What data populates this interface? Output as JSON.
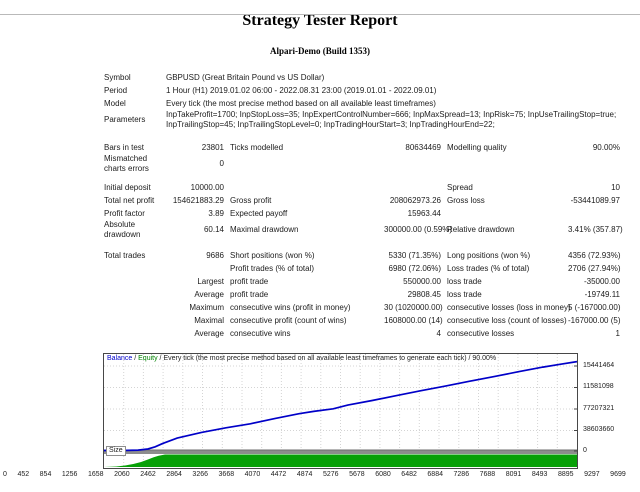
{
  "header": {
    "title": "Strategy Tester Report",
    "subtitle": "Alpari-Demo (Build 1353)"
  },
  "report": {
    "rows": [
      {
        "c1": "Symbol",
        "span": "GBPUSD (Great Britain Pound vs US Dollar)"
      },
      {
        "c1": "Period",
        "span": "1 Hour (H1) 2019.01.02 06:00 - 2022.08.31 23:00 (2019.01.01 - 2022.09.01)"
      },
      {
        "c1": "Model",
        "span": "Every tick (the most precise method based on all available least timeframes)"
      },
      {
        "c1": "Parameters",
        "span": "InpTakeProfit=1700; InpStopLoss=35; InpExpertControlNumber=666; InpMaxSpread=13; InpRisk=75; InpUseTrailingStop=true; InpTrailingStop=45; InpTrailingStopLevel=0; InpTradingHourStart=3; InpTradingHourEnd=22;"
      },
      {
        "gap": 12
      },
      {
        "c1": "Bars in test",
        "c2": "23801",
        "c3": "Ticks modelled",
        "c4": "80634469",
        "c5": "Modelling quality",
        "c6": "90.00%"
      },
      {
        "c1": "Mismatched charts errors",
        "c2": "0"
      },
      {
        "gap": 8
      },
      {
        "c1": "Initial deposit",
        "c2": "10000.00",
        "c5": "Spread",
        "c6": "10"
      },
      {
        "c1": "Total net profit",
        "c2": "154621883.29",
        "c3": "Gross profit",
        "c4": "208062973.26",
        "c5": "Gross loss",
        "c6": "-53441089.97"
      },
      {
        "c1": "Profit factor",
        "c2": "3.89",
        "c3": "Expected payoff",
        "c4": "15963.44"
      },
      {
        "c1": "Absolute drawdown",
        "c2": "60.14",
        "c3": "Maximal drawdown",
        "c4": "300000.00 (0.59%)",
        "c5": "Relative drawdown",
        "c6": "3.41% (357.87)"
      },
      {
        "gap": 10
      },
      {
        "c1": "Total trades",
        "c2": "9686",
        "c3": "Short positions (won %)",
        "c4": "5330 (71.35%)",
        "c5": "Long positions (won %)",
        "c6": "4356 (72.93%)"
      },
      {
        "c3": "Profit trades (% of total)",
        "c4": "6980 (72.06%)",
        "c5": "Loss trades (% of total)",
        "c6": "2706 (27.94%)"
      },
      {
        "c2": "Largest",
        "c3": "profit trade",
        "c4": "550000.00",
        "c5": "loss trade",
        "c6": "-35000.00"
      },
      {
        "c2": "Average",
        "c3": "profit trade",
        "c4": "29808.45",
        "c5": "loss trade",
        "c6": "-19749.11"
      },
      {
        "c2": "Maximum",
        "c3": "consecutive wins (profit in money)",
        "c4": "30 (1020000.00)",
        "c5": "consecutive losses (loss in money)",
        "c6": "5 (-167000.00)"
      },
      {
        "c2": "Maximal",
        "c3": "consecutive profit (count of wins)",
        "c4": "1608000.00 (14)",
        "c5": "consecutive loss (count of losses)",
        "c6": "-167000.00 (5)"
      },
      {
        "c2": "Average",
        "c3": "consecutive wins",
        "c4": "4",
        "c5": "consecutive losses",
        "c6": "1"
      }
    ]
  },
  "chart_data": {
    "type": "line",
    "legend": [
      {
        "t": "Balance",
        "c": "#0000c8"
      },
      {
        "t": " / "
      },
      {
        "t": "Equity",
        "c": "#008000"
      },
      {
        "t": " / Every tick (the most precise method based on all available least timeframes to generate each tick) / 90.00%"
      }
    ],
    "size_label": "Size",
    "x_ticks": [
      "0",
      "452",
      "854",
      "1256",
      "1658",
      "2060",
      "2462",
      "2864",
      "3266",
      "3668",
      "4070",
      "4472",
      "4874",
      "5276",
      "5678",
      "6080",
      "6482",
      "6884",
      "7286",
      "7688",
      "8091",
      "8493",
      "8895",
      "9297",
      "9699"
    ],
    "y_ticks": [
      "15441464",
      "11581098",
      "77207321",
      "38603660",
      "0"
    ],
    "x_range": [
      0,
      9699
    ],
    "grid": true,
    "colors": {
      "balance": "#0000c8",
      "size_fill": "#08a008",
      "divider": "#8d8d8d",
      "gridline": "#d4d4d4",
      "border": "#474747"
    },
    "series": [
      {
        "name": "Balance",
        "color": "#0000c8",
        "points": [
          [
            0,
            10000
          ],
          [
            350,
            40000
          ],
          [
            700,
            700000
          ],
          [
            900,
            2600000
          ],
          [
            1050,
            6500000
          ],
          [
            1200,
            12000000
          ],
          [
            1500,
            21500000
          ],
          [
            2000,
            31500000
          ],
          [
            2500,
            39500000
          ],
          [
            3000,
            46500000
          ],
          [
            3500,
            55500000
          ],
          [
            4000,
            64000000
          ],
          [
            4300,
            68000000
          ],
          [
            4700,
            72500000
          ],
          [
            5000,
            79000000
          ],
          [
            5500,
            87000000
          ],
          [
            6000,
            95500000
          ],
          [
            6500,
            104000000
          ],
          [
            7000,
            112000000
          ],
          [
            7500,
            120500000
          ],
          [
            8000,
            128500000
          ],
          [
            8500,
            137000000
          ],
          [
            9000,
            145000000
          ],
          [
            9350,
            150000000
          ],
          [
            9699,
            154631883
          ]
        ]
      },
      {
        "name": "Size",
        "color": "#08a008",
        "points": [
          [
            0,
            0
          ],
          [
            250,
            0.4
          ],
          [
            430,
            1.2
          ],
          [
            600,
            2.4
          ],
          [
            760,
            4
          ],
          [
            900,
            6
          ],
          [
            1020,
            7.8
          ],
          [
            1120,
            9
          ],
          [
            1250,
            10
          ],
          [
            9699,
            10
          ]
        ]
      }
    ]
  }
}
